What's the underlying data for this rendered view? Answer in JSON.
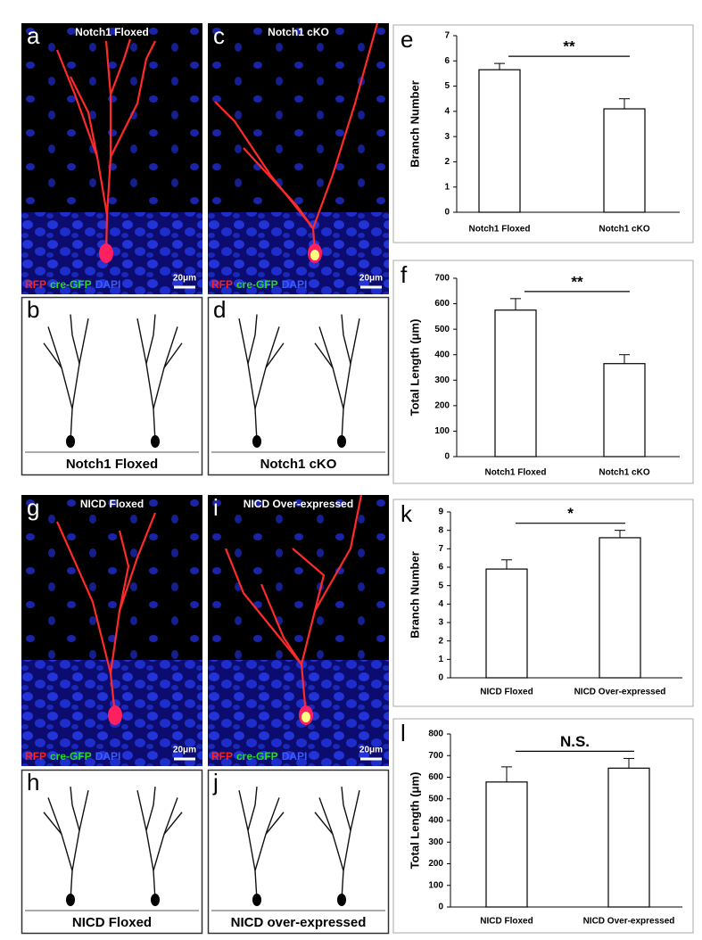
{
  "figure": {
    "image_panels": [
      {
        "letter": "a",
        "title": "Notch1 Floxed",
        "stains": [
          "RFP",
          "cre-GFP",
          "DAPI"
        ],
        "scale_bar": "20μm"
      },
      {
        "letter": "c",
        "title": "Notch1 cKO",
        "stains": [
          "RFP",
          "cre-GFP",
          "DAPI"
        ],
        "scale_bar": "20μm"
      },
      {
        "letter": "g",
        "title": "NICD Floxed",
        "stains": [
          "RFP",
          "cre-GFP",
          "DAPI"
        ],
        "scale_bar": "20μm"
      },
      {
        "letter": "i",
        "title": "NICD Over-expressed",
        "stains": [
          "RFP",
          "cre-GFP",
          "DAPI"
        ],
        "scale_bar": "20μm"
      }
    ],
    "tracing_panels": [
      {
        "letter": "b",
        "caption": "Notch1 Floxed"
      },
      {
        "letter": "d",
        "caption": "Notch1 cKO"
      },
      {
        "letter": "h",
        "caption": "NICD Floxed"
      },
      {
        "letter": "j",
        "caption": "NICD over-expressed"
      }
    ]
  },
  "chart_data": [
    {
      "type": "bar",
      "panel_letter": "e",
      "y_label": "Branch Number",
      "categories": [
        "Notch1 Floxed",
        "Notch1 cKO"
      ],
      "values": [
        5.65,
        4.1
      ],
      "errors": [
        0.25,
        0.4
      ],
      "color": "#ffffff",
      "ylim": [
        0,
        7
      ],
      "yticks": [
        0,
        1,
        2,
        3,
        4,
        5,
        6,
        7
      ],
      "significance": "**"
    },
    {
      "type": "bar",
      "panel_letter": "f",
      "y_label": "Total Length (μm)",
      "categories": [
        "Notch1 Floxed",
        "Notch1 cKO"
      ],
      "values": [
        575,
        365
      ],
      "errors": [
        45,
        35
      ],
      "color": "#ffffff",
      "ylim": [
        0,
        700
      ],
      "yticks": [
        0,
        100,
        200,
        300,
        400,
        500,
        600,
        700
      ],
      "significance": "**"
    },
    {
      "type": "bar",
      "panel_letter": "k",
      "y_label": "Branch Number",
      "categories": [
        "NICD Floxed",
        "NICD Over-expressed"
      ],
      "values": [
        5.9,
        7.6
      ],
      "errors": [
        0.5,
        0.4
      ],
      "color": "#ffffff",
      "ylim": [
        0,
        9
      ],
      "yticks": [
        0,
        1,
        2,
        3,
        4,
        5,
        6,
        7,
        8,
        9
      ],
      "significance": "*"
    },
    {
      "type": "bar",
      "panel_letter": "l",
      "y_label": "Total Length (μm)",
      "categories": [
        "NICD Floxed",
        "NICD Over-expressed"
      ],
      "values": [
        578,
        642
      ],
      "errors": [
        70,
        45
      ],
      "color": "#ffffff",
      "ylim": [
        0,
        800
      ],
      "yticks": [
        0,
        100,
        200,
        300,
        400,
        500,
        600,
        700,
        800
      ],
      "significance": "N.S."
    }
  ]
}
